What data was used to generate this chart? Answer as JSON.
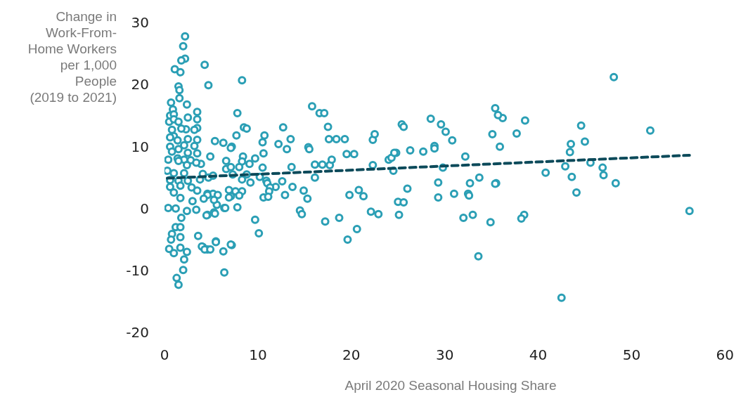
{
  "chart_data": {
    "type": "scatter",
    "xlabel": "April 2020 Seasonal Housing Share",
    "ylabel": "Change in\nWork-From-\nHome Workers\nper 1,000\nPeople\n(2019 to 2021)",
    "xlim": [
      0,
      60
    ],
    "xticks": [
      0,
      10,
      20,
      30,
      40,
      50,
      60
    ],
    "ylim": [
      -20,
      30
    ],
    "yticks": [
      -20,
      -10,
      0,
      10,
      20,
      30
    ],
    "grid": false,
    "legend": false,
    "marker": "circle",
    "series": [
      {
        "type": "scatter",
        "color": "#2b9fb5",
        "x": [
          56.2,
          52.0,
          48.1,
          48.3,
          46.9,
          47.0,
          45.6,
          45.0,
          44.6,
          43.5,
          43.4,
          43.6,
          44.1,
          42.9,
          42.5,
          40.8,
          38.6,
          37.7,
          38.5,
          38.2,
          36.2,
          35.7,
          35.4,
          35.9,
          35.1,
          35.5,
          34.9,
          33.7,
          33.6,
          33.0,
          32.0,
          32.2,
          32.5,
          32.6,
          32.7,
          35.4,
          25.4,
          25.6,
          28.5,
          29.6,
          30.1,
          30.8,
          26.3,
          27.7,
          28.9,
          28.9,
          29.8,
          24.8,
          29.3,
          29.3,
          31.0,
          26.0,
          25.0,
          25.6,
          25.1,
          8.3,
          7.8,
          15.8,
          16.6,
          17.1,
          17.5,
          17.6,
          18.4,
          19.3,
          8.5,
          8.8,
          7.7,
          12.7,
          10.7,
          10.5,
          13.5,
          12.2,
          13.1,
          15.4,
          15.5,
          7.2,
          10.6,
          9.7,
          8.4,
          8.3,
          9.1,
          8.0,
          10.5,
          13.6,
          16.1,
          16.9,
          17.7,
          17.9,
          19.5,
          20.3,
          22.3,
          22.5,
          22.3,
          24.0,
          24.3,
          24.6,
          24.5,
          7.3,
          8.8,
          10.2,
          8.3,
          9.2,
          10.9,
          11.0,
          12.6,
          11.9,
          13.7,
          11.3,
          11.2,
          7.6,
          8.3,
          7.1,
          8.0,
          10.6,
          11.1,
          12.9,
          14.9,
          15.3,
          16.1,
          7.8,
          14.5,
          14.7,
          9.7,
          10.1,
          7.2,
          17.2,
          18.7,
          19.8,
          20.8,
          21.3,
          20.6,
          19.6,
          22.1,
          22.9,
          4.3,
          4.7,
          4.9,
          4.6,
          5.2,
          5.4,
          4.7,
          4.6,
          5.3,
          5.5,
          4.6,
          4.1,
          6.3,
          6.4,
          6.3,
          6.6,
          6.4,
          6.6,
          6.9,
          6.9,
          5.7,
          5.6,
          7.1,
          7.1,
          2.2,
          2.0,
          2.2,
          1.8,
          1.1,
          1.7,
          1.5,
          1.6,
          1.6,
          0.7,
          2.4,
          0.9,
          0.6,
          1.0,
          3.5,
          2.5,
          3.5,
          0.5,
          1.0,
          1.5,
          3.5,
          3.2,
          2.3,
          1.8,
          0.8,
          1.0,
          2.5,
          3.5,
          0.6,
          1.4,
          3.2,
          2.1,
          0.6,
          0.8,
          1.5,
          2.5,
          3.5,
          0.4,
          1.4,
          2.1,
          2.8,
          3.9,
          1.5,
          2.4,
          3.4,
          0.3,
          1.0,
          2.1,
          4.1,
          5.2,
          0.6,
          1.5,
          2.5,
          3.8,
          0.6,
          1.7,
          2.9,
          3.5,
          1.0,
          1.7,
          3.0,
          4.6,
          5.3,
          4.2,
          0.4,
          1.2,
          2.4,
          3.4,
          4.5,
          5.4,
          6.5,
          1.8,
          1.2,
          1.7,
          0.8,
          1.7,
          0.7,
          3.6,
          4.0,
          4.3,
          4.9,
          5.5,
          7.1,
          0.5,
          1.0,
          1.7,
          2.4,
          2.1,
          2.0,
          1.3,
          1.5
        ],
        "values": [
          -0.2,
          12.8,
          21.4,
          4.3,
          6.8,
          5.6,
          7.6,
          11.0,
          13.6,
          10.6,
          9.3,
          5.3,
          2.8,
          7.0,
          -14.2,
          6.0,
          14.4,
          12.3,
          -0.8,
          -1.4,
          14.8,
          15.3,
          16.4,
          10.2,
          12.2,
          4.3,
          -2.0,
          5.2,
          -7.5,
          -0.8,
          -1.3,
          8.6,
          2.6,
          2.3,
          4.3,
          4.2,
          13.8,
          13.4,
          14.7,
          13.8,
          12.6,
          11.2,
          9.6,
          9.4,
          10.3,
          9.9,
          6.8,
          9.2,
          4.4,
          2.0,
          2.6,
          3.4,
          1.3,
          1.2,
          -0.8,
          20.9,
          15.6,
          16.7,
          15.6,
          15.6,
          13.4,
          11.4,
          11.4,
          11.4,
          13.3,
          13.1,
          12.0,
          13.3,
          12.0,
          10.9,
          11.4,
          10.6,
          9.8,
          10.1,
          9.8,
          10.2,
          9.1,
          8.3,
          8.6,
          7.8,
          7.4,
          6.9,
          6.8,
          6.9,
          7.3,
          7.3,
          7.2,
          8.1,
          9.0,
          9.0,
          11.3,
          12.2,
          7.2,
          8.1,
          8.4,
          9.2,
          6.3,
          5.7,
          5.7,
          5.3,
          4.9,
          4.4,
          4.7,
          4.3,
          4.6,
          3.7,
          3.7,
          3.6,
          3.0,
          3.0,
          3.0,
          2.2,
          2.3,
          2.0,
          2.1,
          2.4,
          3.1,
          1.8,
          5.2,
          0.4,
          -0.1,
          -0.7,
          -1.6,
          -3.8,
          -5.7,
          -1.9,
          -1.3,
          2.4,
          3.2,
          2.2,
          -3.1,
          -4.8,
          -0.3,
          -0.7,
          23.4,
          20.1,
          8.6,
          2.6,
          2.6,
          11.1,
          5.2,
          -0.8,
          -0.4,
          -5.1,
          -6.4,
          -6.0,
          -6.7,
          -10.1,
          10.8,
          7.9,
          0.3,
          6.6,
          3.2,
          2.0,
          2.4,
          0.8,
          10.0,
          6.9,
          28.0,
          26.4,
          24.4,
          24.1,
          22.7,
          22.2,
          19.9,
          19.3,
          18.0,
          17.3,
          17.0,
          16.2,
          15.2,
          15.4,
          15.8,
          14.9,
          14.6,
          14.2,
          14.6,
          14.2,
          13.2,
          12.9,
          13.0,
          13.1,
          12.9,
          11.9,
          11.4,
          11.3,
          11.7,
          11.2,
          10.3,
          10.4,
          10.2,
          9.4,
          9.8,
          9.2,
          9.1,
          8.1,
          8.3,
          8.1,
          8.0,
          7.4,
          7.9,
          7.2,
          7.6,
          6.3,
          5.9,
          5.9,
          5.8,
          5.5,
          4.8,
          4.7,
          4.7,
          4.9,
          3.7,
          3.9,
          3.6,
          3.1,
          2.8,
          1.9,
          1.4,
          2.4,
          1.6,
          1.8,
          0.3,
          0.2,
          -0.2,
          0.0,
          -0.9,
          -0.6,
          0.3,
          -1.3,
          -2.8,
          -2.8,
          -3.9,
          -4.4,
          -4.8,
          -4.2,
          -5.9,
          -6.4,
          -6.4,
          -5.2,
          -5.6,
          -6.3,
          -7.0,
          -6.1,
          -6.8,
          -8.0,
          -9.7,
          -11.0,
          -12.1
        ]
      },
      {
        "type": "line",
        "color": "#0c4a5a",
        "line_style": "dashed",
        "marker": "none",
        "x": [
          0.3,
          56.2
        ],
        "values": [
          5.1,
          8.8
        ]
      }
    ]
  }
}
